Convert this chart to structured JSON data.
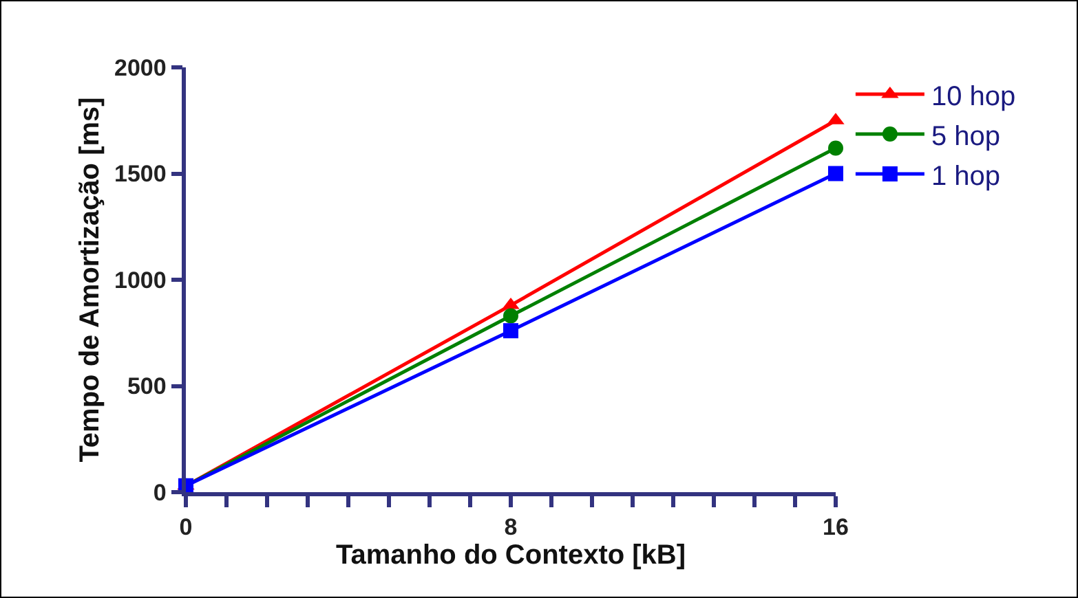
{
  "chart_data": {
    "type": "line",
    "xlabel": "Tamanho do Contexto [kB]",
    "ylabel": "Tempo de Amortização [ms]",
    "x": [
      0,
      8,
      16
    ],
    "series": [
      {
        "name": "10 hop",
        "color": "#ff0000",
        "marker": "triangle",
        "values": [
          30,
          880,
          1750
        ]
      },
      {
        "name": "5 hop",
        "color": "#008000",
        "marker": "circle",
        "values": [
          30,
          830,
          1620
        ]
      },
      {
        "name": "1 hop",
        "color": "#0000ff",
        "marker": "square",
        "values": [
          30,
          760,
          1500
        ]
      }
    ],
    "xlim": [
      0,
      16
    ],
    "xticks": [
      0,
      {
        "value": 1,
        "label": null
      },
      {
        "value": 2,
        "label": null
      },
      {
        "value": 3,
        "label": null
      },
      {
        "value": 4,
        "label": null
      },
      {
        "value": 5,
        "label": null
      },
      {
        "value": 6,
        "label": null
      },
      {
        "value": 7,
        "label": null
      },
      8,
      {
        "value": 9,
        "label": null
      },
      {
        "value": 10,
        "label": null
      },
      {
        "value": 11,
        "label": null
      },
      {
        "value": 12,
        "label": null
      },
      {
        "value": 13,
        "label": null
      },
      {
        "value": 14,
        "label": null
      },
      {
        "value": 15,
        "label": null
      },
      16
    ],
    "ylim": [
      0,
      2000
    ],
    "yticks": [
      0,
      500,
      1000,
      1500,
      2000
    ],
    "grid": false,
    "legend": "top right",
    "line_style": "solid"
  }
}
